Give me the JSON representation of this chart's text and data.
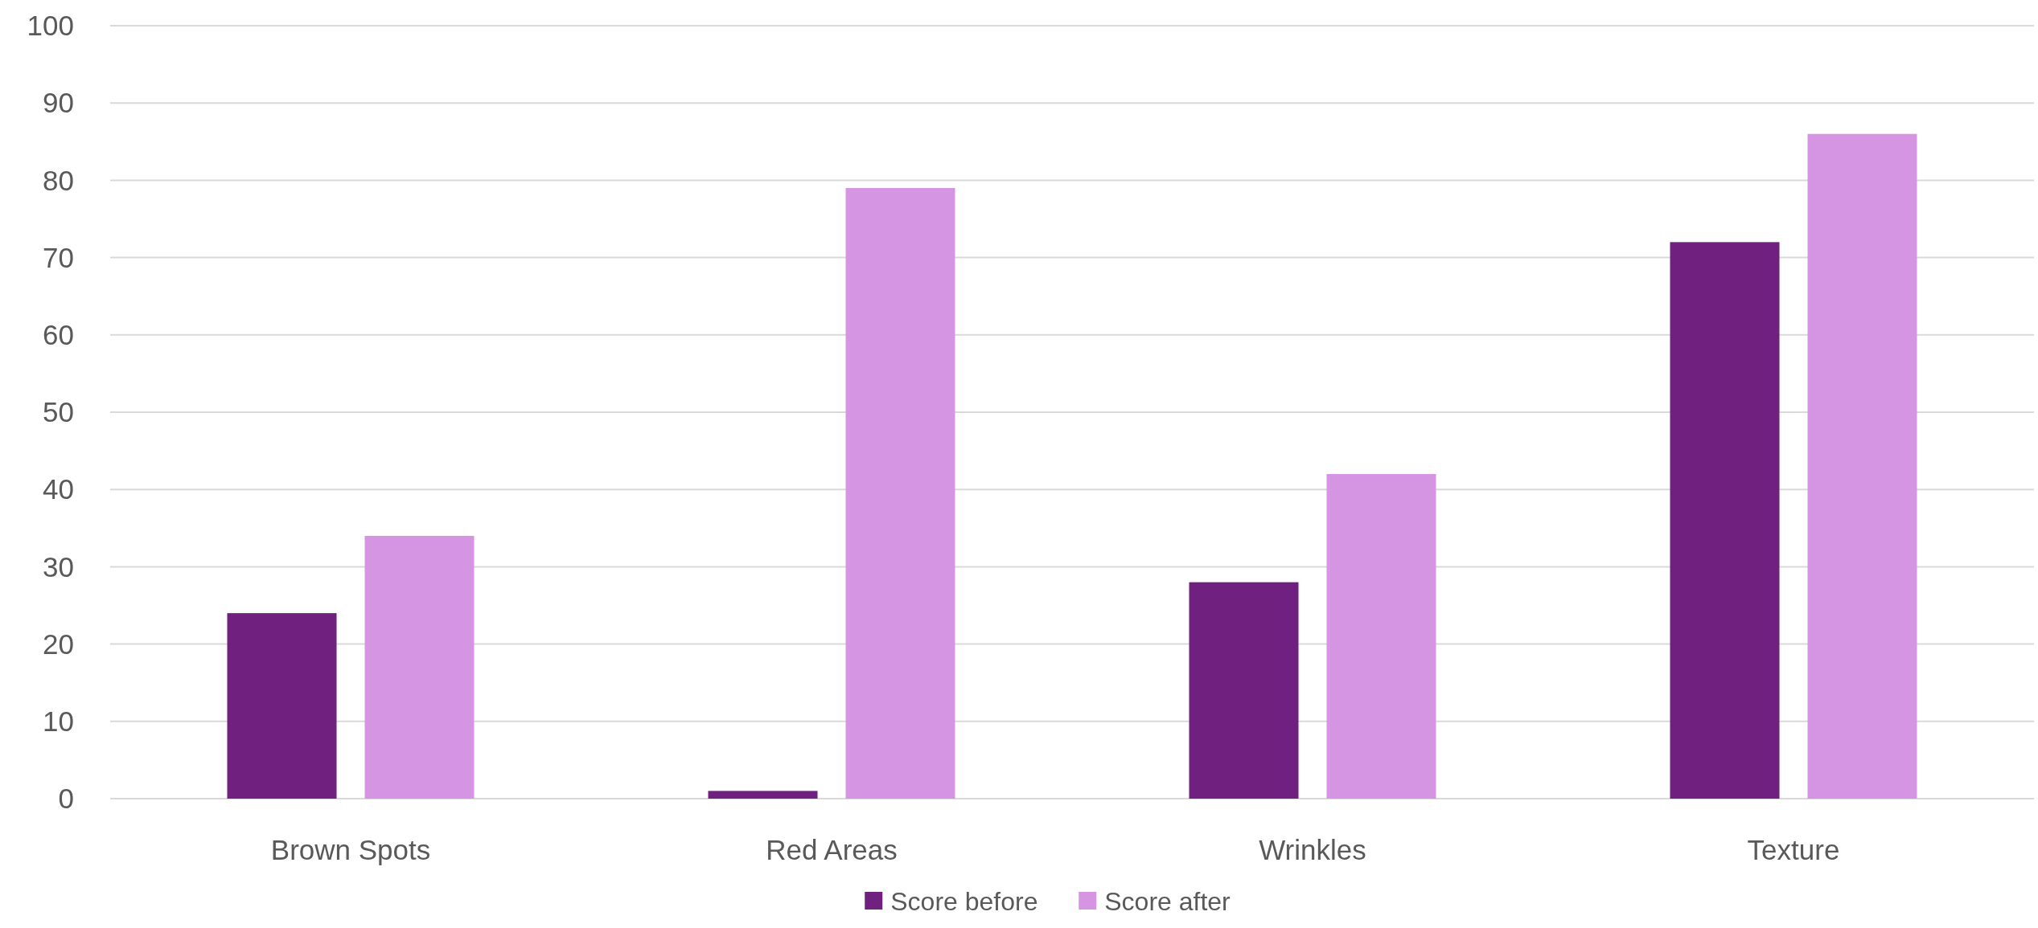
{
  "chart_data": {
    "type": "bar",
    "categories": [
      "Brown Spots",
      "Red Areas",
      "Wrinkles",
      "Texture"
    ],
    "series": [
      {
        "name": "Score before",
        "color": "#70217f",
        "values": [
          24,
          1,
          28,
          72
        ]
      },
      {
        "name": "Score after",
        "color": "#d595e3",
        "values": [
          34,
          79,
          42,
          86
        ]
      }
    ],
    "ylim": [
      0,
      100
    ],
    "yticks": [
      0,
      10,
      20,
      30,
      40,
      50,
      60,
      70,
      80,
      90,
      100
    ],
    "grid": "y",
    "legend": "bottom"
  }
}
